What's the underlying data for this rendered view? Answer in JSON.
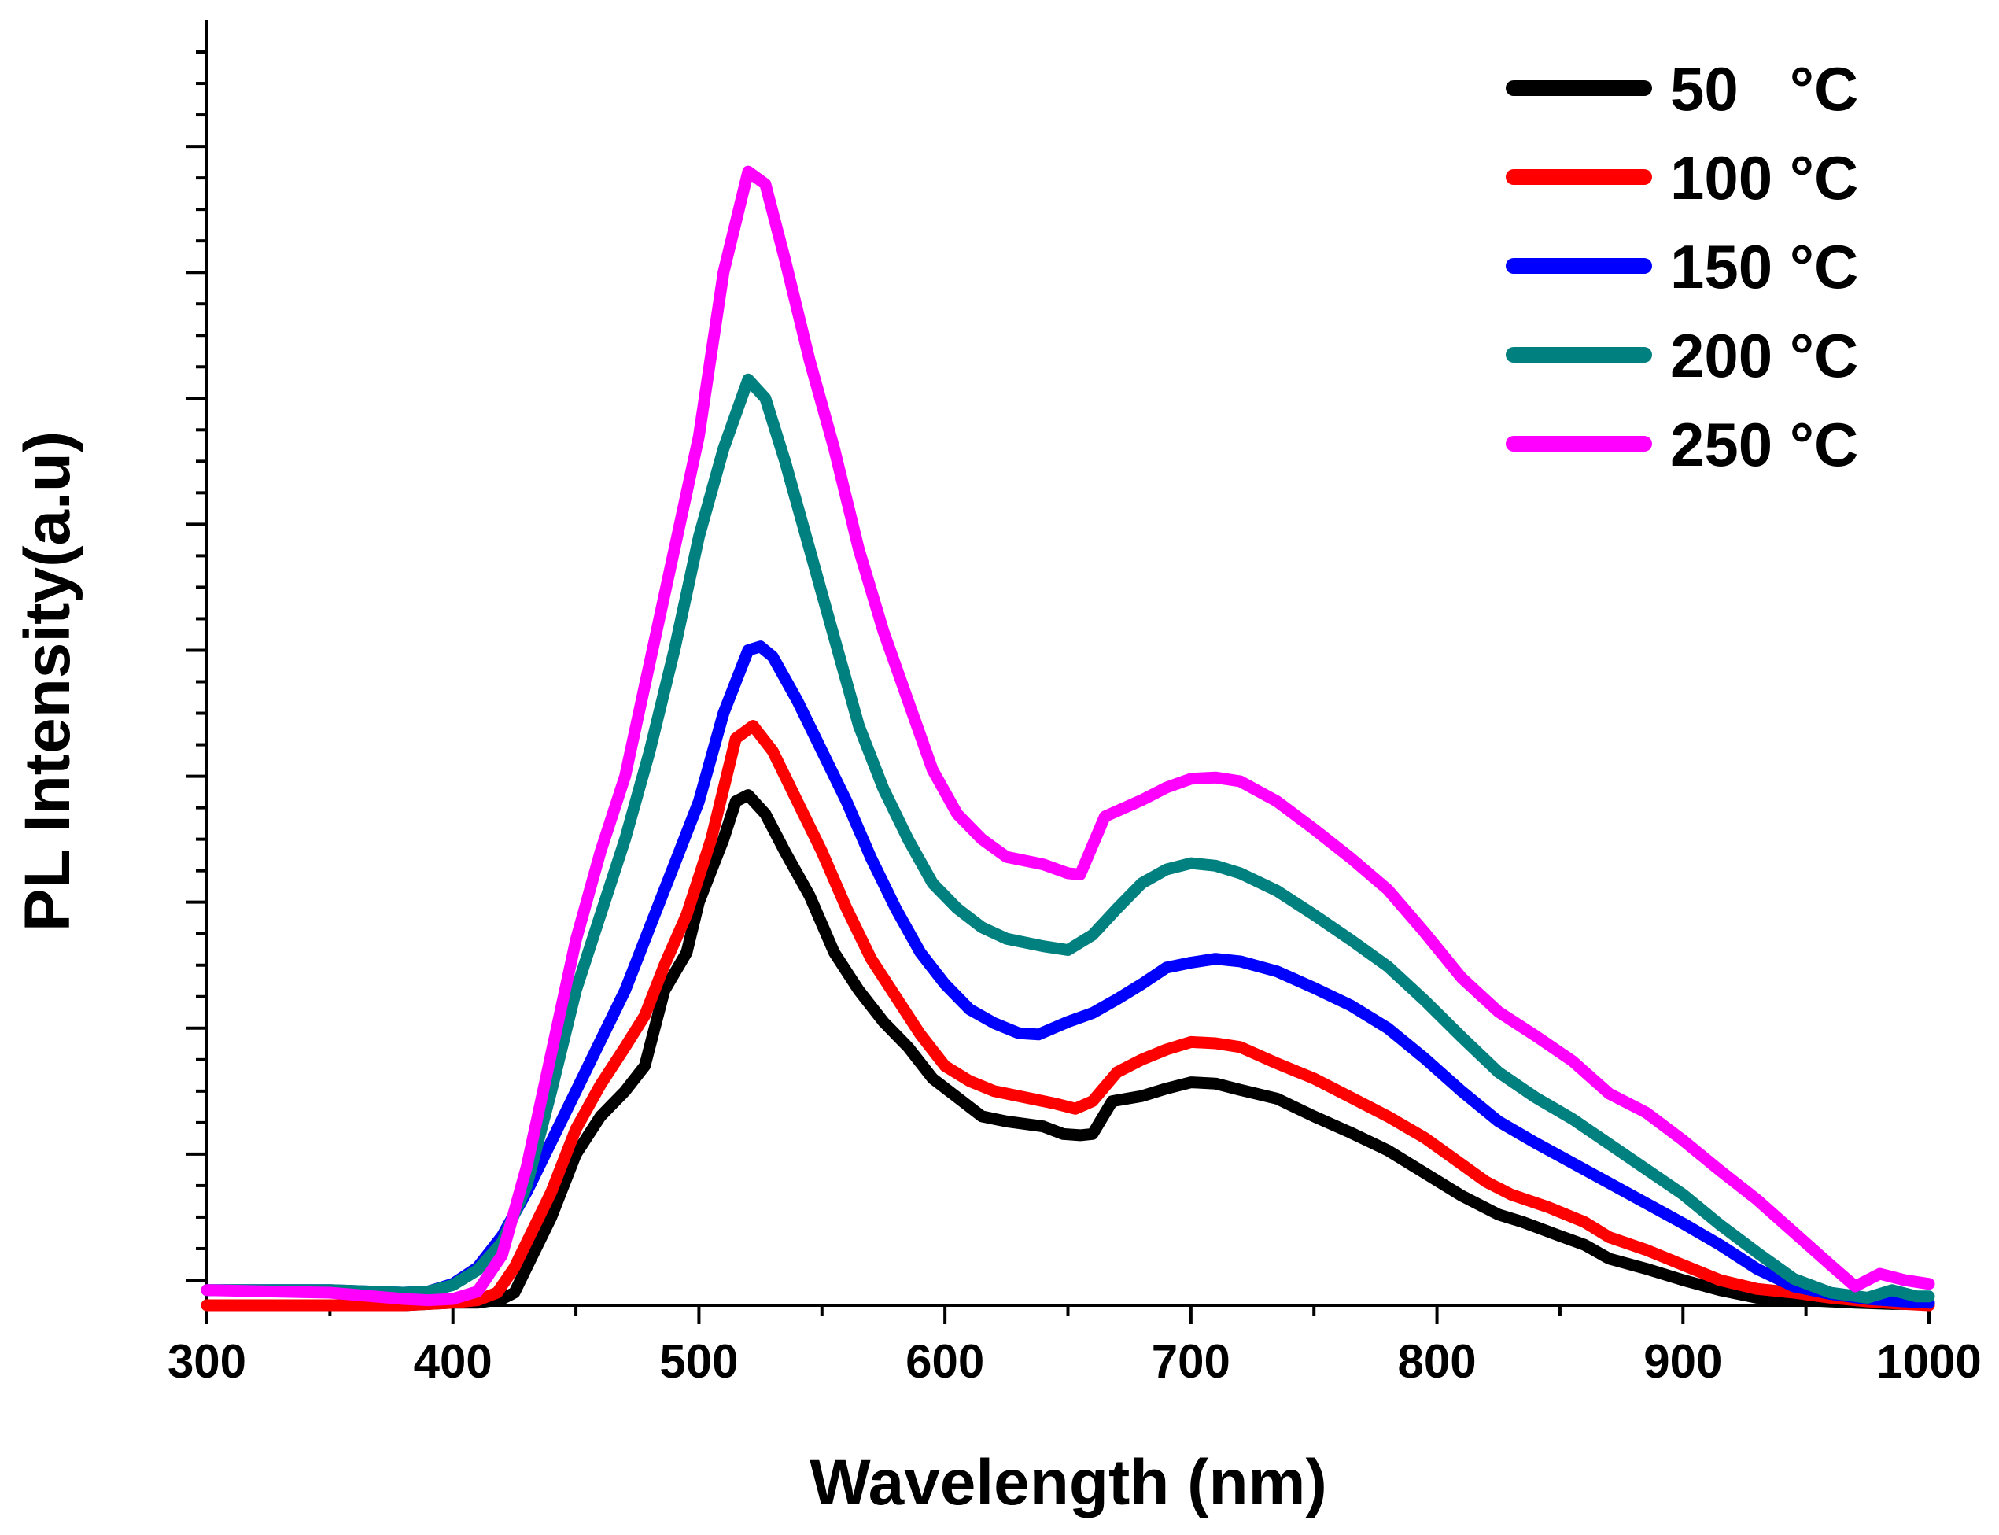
{
  "chart_data": {
    "type": "line",
    "title": "",
    "xlabel": "Wavelength (nm)",
    "ylabel": "PL Intensity(a.u)",
    "xlim": [
      300,
      1000
    ],
    "ylim": [
      -2,
      100
    ],
    "x_ticks": [
      300,
      400,
      500,
      600,
      700,
      800,
      900,
      1000
    ],
    "x_tick_labels": [
      "300",
      "400",
      "500",
      "600",
      "700",
      "800",
      "900",
      "1000"
    ],
    "y_ticks": [
      0,
      10,
      20,
      30,
      40,
      50,
      60,
      70,
      80,
      90
    ],
    "y_tick_labels": [],
    "y_minor_step": 2.5,
    "x_minor_step": 50,
    "grid": false,
    "legend_position": "top-right",
    "series": [
      {
        "name": "50   °C",
        "color": "#000000",
        "points": [
          [
            300,
            -2
          ],
          [
            350,
            -2
          ],
          [
            380,
            -2
          ],
          [
            400,
            -1.8
          ],
          [
            410,
            -1.8
          ],
          [
            420,
            -1.5
          ],
          [
            425,
            -1
          ],
          [
            430,
            1
          ],
          [
            440,
            5
          ],
          [
            450,
            10
          ],
          [
            460,
            13
          ],
          [
            470,
            15
          ],
          [
            478,
            17
          ],
          [
            486,
            23
          ],
          [
            495,
            26
          ],
          [
            500,
            30
          ],
          [
            510,
            35
          ],
          [
            515,
            38
          ],
          [
            520,
            38.5
          ],
          [
            527,
            37
          ],
          [
            535,
            34
          ],
          [
            545,
            30.5
          ],
          [
            555,
            26
          ],
          [
            565,
            23
          ],
          [
            575,
            20.5
          ],
          [
            585,
            18.5
          ],
          [
            595,
            16
          ],
          [
            605,
            14.5
          ],
          [
            615,
            13
          ],
          [
            625,
            12.6
          ],
          [
            640,
            12.2
          ],
          [
            648,
            11.6
          ],
          [
            655,
            11.5
          ],
          [
            660,
            11.6
          ],
          [
            668,
            14.2
          ],
          [
            680,
            14.6
          ],
          [
            690,
            15.2
          ],
          [
            700,
            15.7
          ],
          [
            710,
            15.6
          ],
          [
            720,
            15.1
          ],
          [
            735,
            14.4
          ],
          [
            750,
            13
          ],
          [
            765,
            11.7
          ],
          [
            780,
            10.3
          ],
          [
            795,
            8.5
          ],
          [
            810,
            6.7
          ],
          [
            825,
            5.2
          ],
          [
            835,
            4.6
          ],
          [
            850,
            3.5
          ],
          [
            860,
            2.8
          ],
          [
            870,
            1.7
          ],
          [
            885,
            0.9
          ],
          [
            900,
            0
          ],
          [
            915,
            -0.8
          ],
          [
            930,
            -1.4
          ],
          [
            950,
            -1.6
          ],
          [
            970,
            -1.8
          ],
          [
            985,
            -1.9
          ],
          [
            1000,
            -1.9
          ]
        ]
      },
      {
        "name": "100 °C",
        "color": "#ff0000",
        "points": [
          [
            300,
            -2
          ],
          [
            350,
            -2
          ],
          [
            380,
            -2
          ],
          [
            400,
            -1.8
          ],
          [
            410,
            -1.6
          ],
          [
            418,
            -1
          ],
          [
            425,
            1
          ],
          [
            430,
            3
          ],
          [
            440,
            7
          ],
          [
            450,
            12
          ],
          [
            460,
            15.5
          ],
          [
            470,
            18.5
          ],
          [
            478,
            21
          ],
          [
            486,
            25
          ],
          [
            495,
            29
          ],
          [
            505,
            35
          ],
          [
            515,
            43
          ],
          [
            522,
            44
          ],
          [
            530,
            42
          ],
          [
            540,
            38
          ],
          [
            550,
            34
          ],
          [
            560,
            29.5
          ],
          [
            570,
            25.5
          ],
          [
            580,
            22.5
          ],
          [
            590,
            19.5
          ],
          [
            600,
            17
          ],
          [
            610,
            15.8
          ],
          [
            620,
            15
          ],
          [
            635,
            14.4
          ],
          [
            645,
            14
          ],
          [
            653,
            13.6
          ],
          [
            660,
            14.2
          ],
          [
            670,
            16.5
          ],
          [
            680,
            17.5
          ],
          [
            690,
            18.3
          ],
          [
            700,
            18.9
          ],
          [
            710,
            18.8
          ],
          [
            720,
            18.5
          ],
          [
            735,
            17.2
          ],
          [
            750,
            16
          ],
          [
            765,
            14.5
          ],
          [
            780,
            13
          ],
          [
            795,
            11.3
          ],
          [
            810,
            9.2
          ],
          [
            820,
            7.8
          ],
          [
            830,
            6.8
          ],
          [
            845,
            5.8
          ],
          [
            860,
            4.6
          ],
          [
            870,
            3.4
          ],
          [
            885,
            2.4
          ],
          [
            900,
            1.2
          ],
          [
            915,
            0
          ],
          [
            930,
            -0.7
          ],
          [
            945,
            -1
          ],
          [
            960,
            -1.4
          ],
          [
            975,
            -1.7
          ],
          [
            990,
            -1.9
          ],
          [
            1000,
            -2
          ]
        ]
      },
      {
        "name": "150 °C",
        "color": "#0000ff",
        "points": [
          [
            300,
            -0.8
          ],
          [
            350,
            -0.8
          ],
          [
            380,
            -1
          ],
          [
            390,
            -0.9
          ],
          [
            400,
            -0.3
          ],
          [
            410,
            1
          ],
          [
            420,
            3.5
          ],
          [
            430,
            7
          ],
          [
            440,
            11
          ],
          [
            450,
            15
          ],
          [
            460,
            19
          ],
          [
            470,
            23
          ],
          [
            480,
            28
          ],
          [
            490,
            33
          ],
          [
            500,
            38
          ],
          [
            510,
            45
          ],
          [
            520,
            50
          ],
          [
            525,
            50.3
          ],
          [
            530,
            49.5
          ],
          [
            540,
            46
          ],
          [
            550,
            42
          ],
          [
            560,
            38
          ],
          [
            570,
            33.5
          ],
          [
            580,
            29.5
          ],
          [
            590,
            26
          ],
          [
            600,
            23.5
          ],
          [
            610,
            21.5
          ],
          [
            620,
            20.4
          ],
          [
            630,
            19.6
          ],
          [
            638,
            19.5
          ],
          [
            650,
            20.5
          ],
          [
            660,
            21.2
          ],
          [
            670,
            22.3
          ],
          [
            680,
            23.5
          ],
          [
            690,
            24.8
          ],
          [
            700,
            25.2
          ],
          [
            710,
            25.5
          ],
          [
            720,
            25.3
          ],
          [
            735,
            24.5
          ],
          [
            750,
            23.2
          ],
          [
            765,
            21.8
          ],
          [
            780,
            20
          ],
          [
            795,
            17.6
          ],
          [
            810,
            15
          ],
          [
            825,
            12.6
          ],
          [
            840,
            10.9
          ],
          [
            855,
            9.3
          ],
          [
            870,
            7.7
          ],
          [
            885,
            6.1
          ],
          [
            900,
            4.5
          ],
          [
            915,
            2.8
          ],
          [
            930,
            0.9
          ],
          [
            945,
            -0.5
          ],
          [
            960,
            -1.1
          ],
          [
            975,
            -1.5
          ],
          [
            990,
            -1.7
          ],
          [
            1000,
            -1.8
          ]
        ]
      },
      {
        "name": "200 °C",
        "color": "#00807f",
        "points": [
          [
            300,
            -0.8
          ],
          [
            350,
            -0.8
          ],
          [
            380,
            -1
          ],
          [
            390,
            -0.9
          ],
          [
            400,
            -0.4
          ],
          [
            410,
            0.8
          ],
          [
            420,
            3
          ],
          [
            430,
            7.5
          ],
          [
            440,
            15
          ],
          [
            450,
            23
          ],
          [
            460,
            29
          ],
          [
            470,
            35
          ],
          [
            480,
            42
          ],
          [
            490,
            50
          ],
          [
            500,
            59
          ],
          [
            510,
            66
          ],
          [
            520,
            71.5
          ],
          [
            527,
            70
          ],
          [
            535,
            65
          ],
          [
            545,
            58
          ],
          [
            555,
            51
          ],
          [
            565,
            44
          ],
          [
            575,
            39
          ],
          [
            585,
            35
          ],
          [
            595,
            31.5
          ],
          [
            605,
            29.5
          ],
          [
            615,
            28
          ],
          [
            625,
            27.1
          ],
          [
            640,
            26.5
          ],
          [
            650,
            26.2
          ],
          [
            660,
            27.4
          ],
          [
            670,
            29.5
          ],
          [
            680,
            31.5
          ],
          [
            690,
            32.6
          ],
          [
            700,
            33.1
          ],
          [
            710,
            32.9
          ],
          [
            720,
            32.3
          ],
          [
            735,
            30.9
          ],
          [
            750,
            29
          ],
          [
            765,
            27
          ],
          [
            780,
            24.9
          ],
          [
            795,
            22.2
          ],
          [
            810,
            19.3
          ],
          [
            825,
            16.5
          ],
          [
            840,
            14.5
          ],
          [
            855,
            12.8
          ],
          [
            870,
            10.8
          ],
          [
            885,
            8.8
          ],
          [
            900,
            6.8
          ],
          [
            915,
            4.4
          ],
          [
            930,
            2.2
          ],
          [
            945,
            0.1
          ],
          [
            960,
            -1
          ],
          [
            975,
            -1.4
          ],
          [
            985,
            -0.8
          ],
          [
            995,
            -1.3
          ],
          [
            1000,
            -1.3
          ]
        ]
      },
      {
        "name": "250 °C",
        "color": "#ff00ff",
        "points": [
          [
            300,
            -0.8
          ],
          [
            350,
            -1
          ],
          [
            380,
            -1.5
          ],
          [
            390,
            -1.6
          ],
          [
            400,
            -1.5
          ],
          [
            410,
            -0.9
          ],
          [
            420,
            2
          ],
          [
            430,
            9
          ],
          [
            440,
            18
          ],
          [
            450,
            27
          ],
          [
            460,
            34
          ],
          [
            470,
            40
          ],
          [
            480,
            49
          ],
          [
            490,
            58
          ],
          [
            500,
            67
          ],
          [
            510,
            80
          ],
          [
            520,
            88
          ],
          [
            527,
            87
          ],
          [
            535,
            81
          ],
          [
            545,
            73
          ],
          [
            555,
            66
          ],
          [
            565,
            58
          ],
          [
            575,
            51.5
          ],
          [
            585,
            46
          ],
          [
            595,
            40.5
          ],
          [
            605,
            37
          ],
          [
            615,
            35
          ],
          [
            625,
            33.6
          ],
          [
            640,
            33
          ],
          [
            650,
            32.3
          ],
          [
            655,
            32.2
          ],
          [
            665,
            36.8
          ],
          [
            680,
            38.1
          ],
          [
            690,
            39.1
          ],
          [
            700,
            39.8
          ],
          [
            710,
            39.9
          ],
          [
            720,
            39.6
          ],
          [
            735,
            38
          ],
          [
            750,
            35.8
          ],
          [
            765,
            33.5
          ],
          [
            780,
            31
          ],
          [
            795,
            27.6
          ],
          [
            810,
            24
          ],
          [
            825,
            21.3
          ],
          [
            840,
            19.4
          ],
          [
            855,
            17.4
          ],
          [
            870,
            14.8
          ],
          [
            885,
            13.3
          ],
          [
            900,
            11.1
          ],
          [
            915,
            8.7
          ],
          [
            930,
            6.4
          ],
          [
            945,
            3.8
          ],
          [
            960,
            1.2
          ],
          [
            970,
            -0.5
          ],
          [
            980,
            0.5
          ],
          [
            990,
            0
          ],
          [
            1000,
            -0.3
          ]
        ]
      }
    ]
  }
}
